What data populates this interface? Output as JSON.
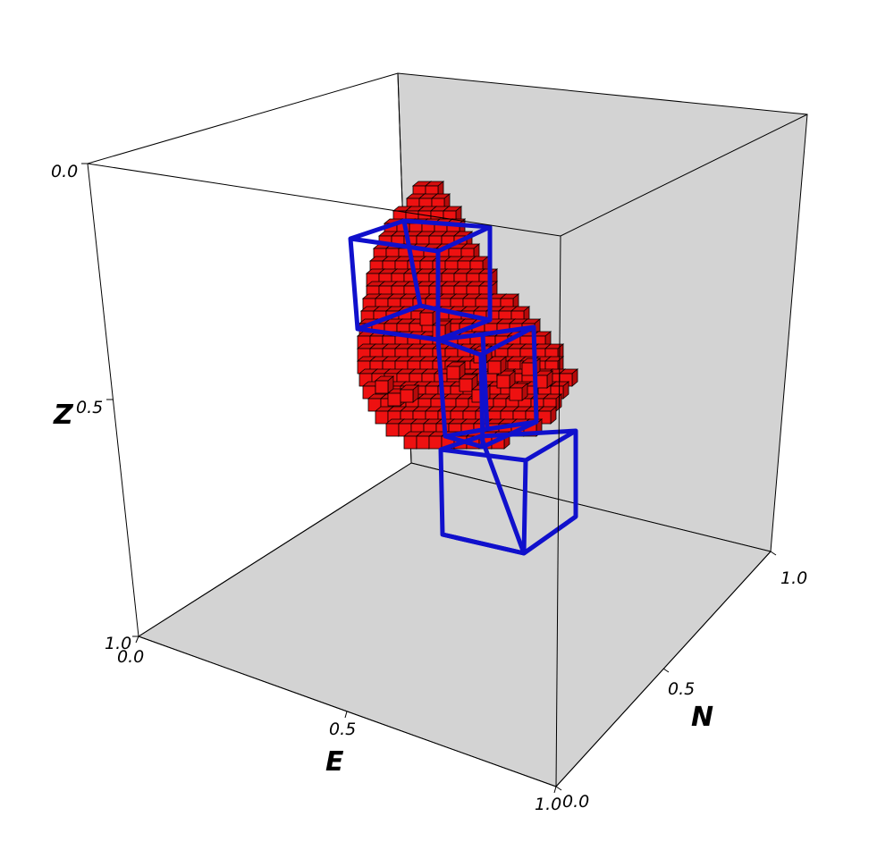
{
  "chart_data": {
    "type": "scatter",
    "subtype": "3d-voxel",
    "axes": {
      "x": {
        "label": "E",
        "ticks": [
          "0.0",
          "0.5",
          "1.0"
        ],
        "range": [
          0,
          1
        ]
      },
      "y": {
        "label": "N",
        "ticks": [
          "0.0",
          "0.5",
          "1.0"
        ],
        "range": [
          0,
          1
        ]
      },
      "z": {
        "label": "Z",
        "ticks": [
          "0.0",
          "0.5",
          "1.0"
        ],
        "range": [
          0,
          1
        ],
        "inverted": true
      }
    },
    "voxel_color": "#ee1111",
    "box_color": "#1010cc",
    "pane_color": "#d3d3d3"
  }
}
